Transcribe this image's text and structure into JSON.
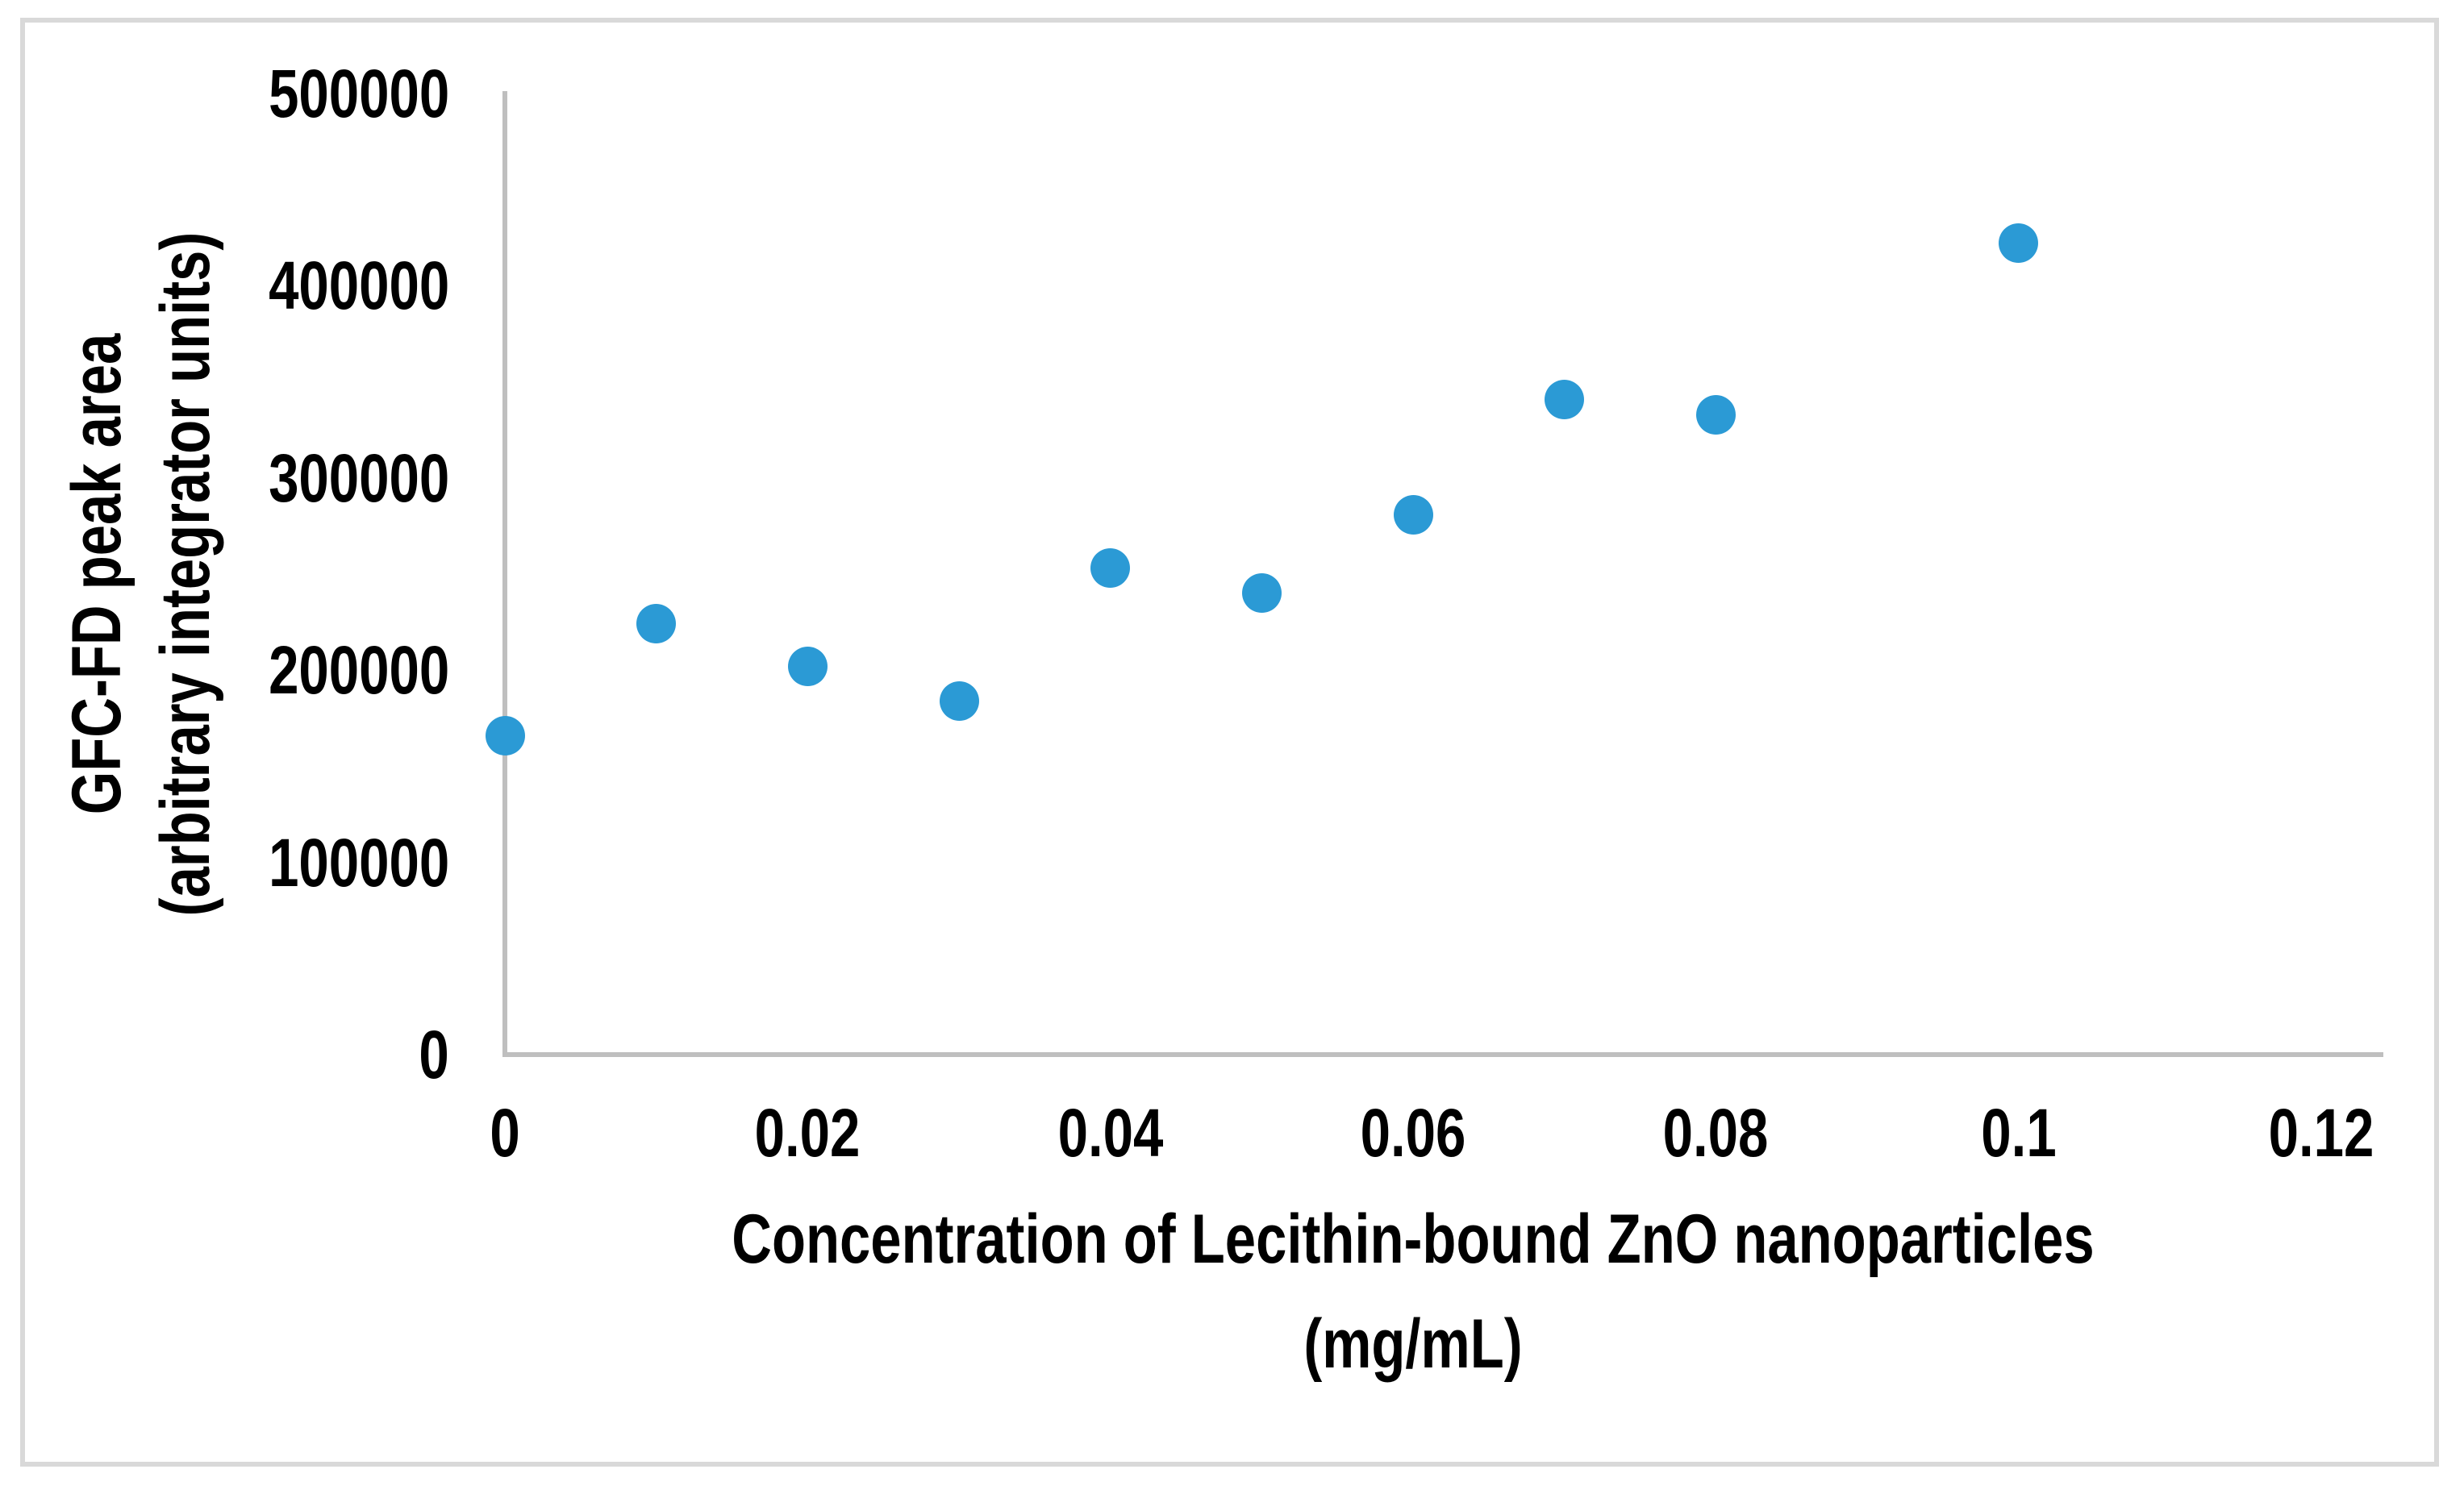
{
  "figure": {
    "background_color": "#ffffff",
    "border_color": "#d9d9d9",
    "axis_color": "#bfbfbf",
    "text_color": "#000000"
  },
  "chart_data": {
    "type": "scatter",
    "title": "",
    "xlabel_line1": "Concentration of Lecithin-bound ZnO nanoparticles",
    "xlabel_line2": "(mg/mL)",
    "ylabel_line1": "GFC-FD peak area",
    "ylabel_line2": "(arbitrary integrator units)",
    "xlim": [
      0,
      0.12
    ],
    "ylim": [
      0,
      500000
    ],
    "grid": false,
    "legend": "none",
    "marker_color": "#2B9AD5",
    "marker_shape": "circle",
    "x_tick_values": [
      0,
      0.02,
      0.04,
      0.06,
      0.08,
      0.1,
      0.12
    ],
    "x_tick_labels": [
      "0",
      "0.02",
      "0.04",
      "0.06",
      "0.08",
      "0.1",
      "0.12"
    ],
    "y_tick_values": [
      0,
      100000,
      200000,
      300000,
      400000,
      500000
    ],
    "y_tick_labels": [
      "0",
      "100000",
      "200000",
      "300000",
      "400000",
      "500000"
    ],
    "points": [
      {
        "x": 0,
        "y": 166000
      },
      {
        "x": 0.01,
        "y": 224000
      },
      {
        "x": 0.02,
        "y": 202000
      },
      {
        "x": 0.03,
        "y": 184000
      },
      {
        "x": 0.04,
        "y": 253000
      },
      {
        "x": 0.05,
        "y": 240000
      },
      {
        "x": 0.06,
        "y": 281000
      },
      {
        "x": 0.07,
        "y": 341000
      },
      {
        "x": 0.08,
        "y": 333000
      },
      {
        "x": 0.1,
        "y": 422000
      }
    ]
  }
}
